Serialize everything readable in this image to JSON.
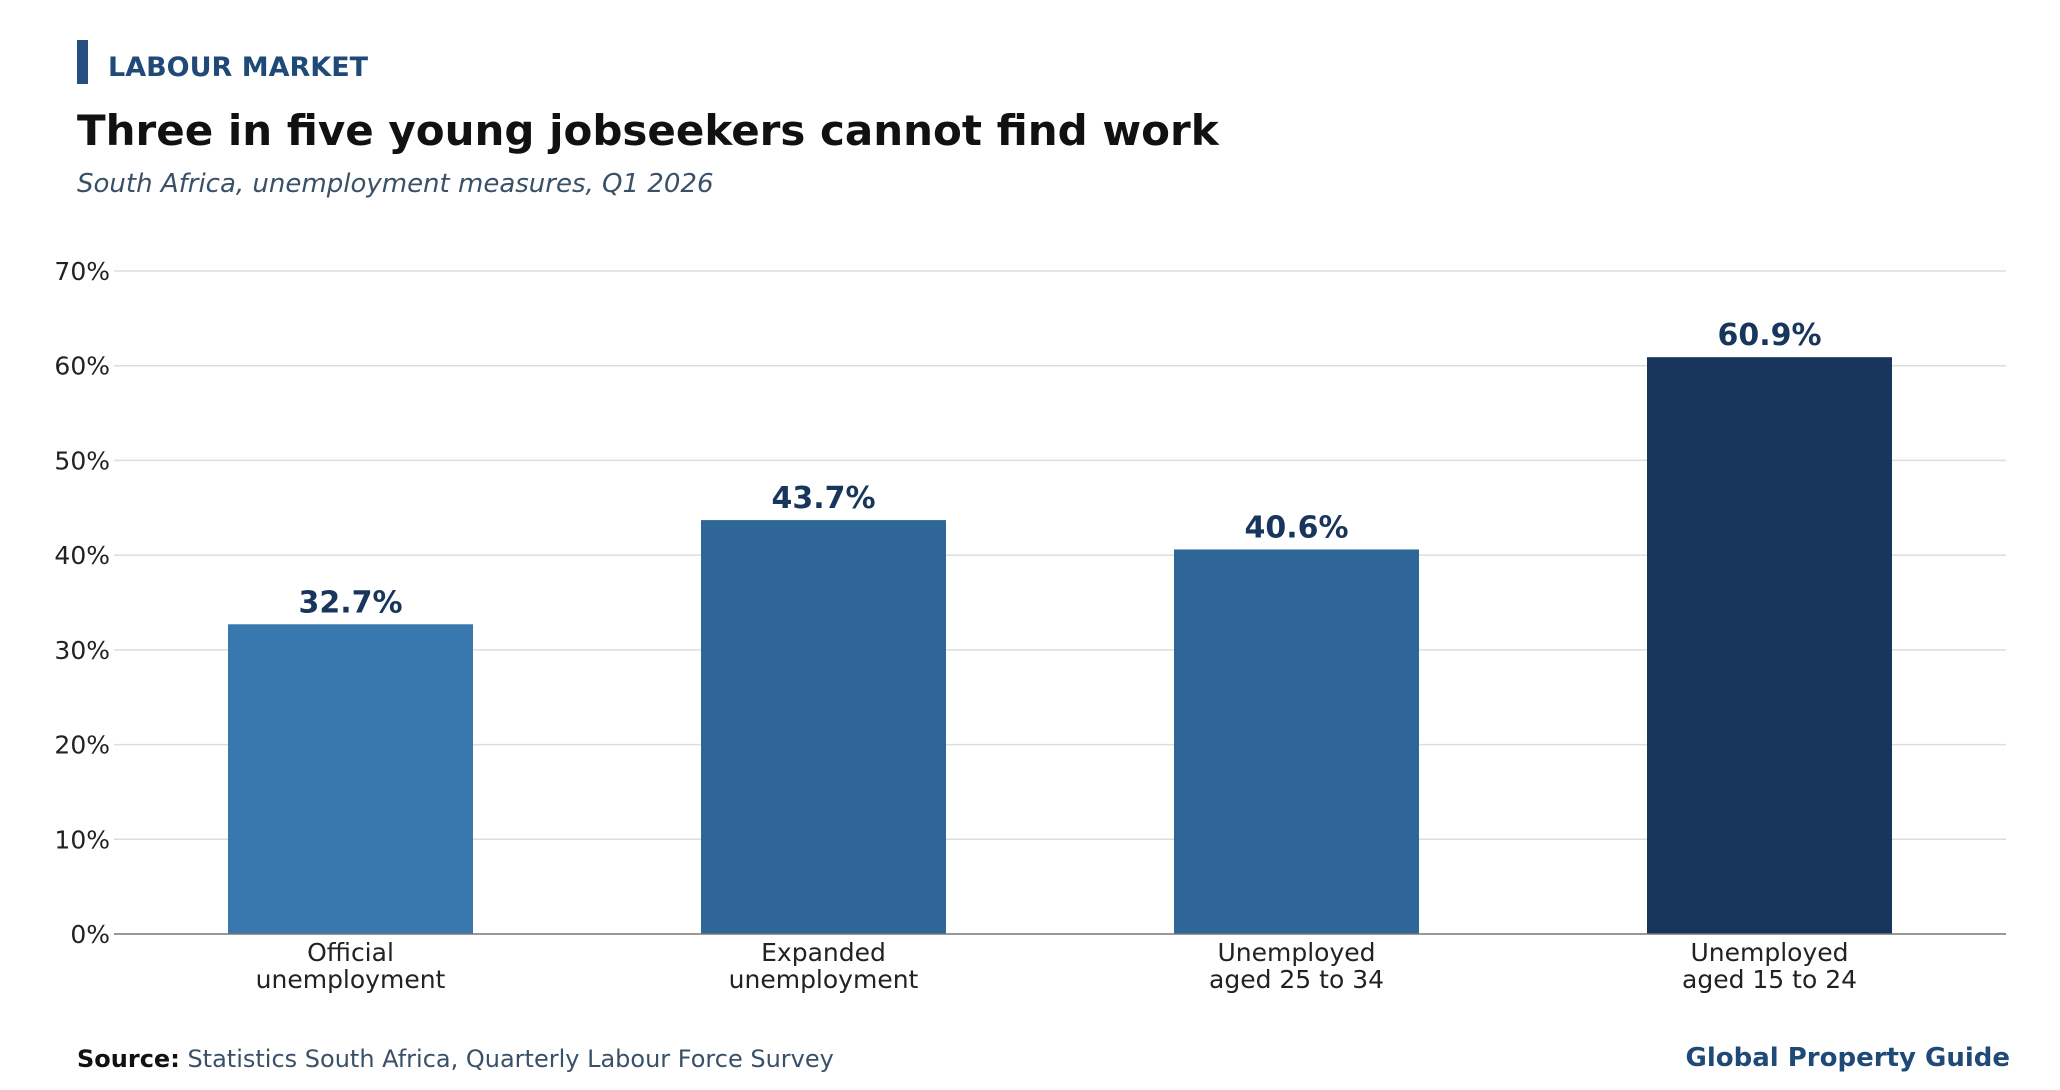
{
  "header": {
    "kicker": "LABOUR MARKET",
    "title": "Three in five young jobseekers cannot find work",
    "subtitle": "South Africa, unemployment measures, Q1 2026"
  },
  "footer": {
    "source_label": "Source:",
    "source_text": "Statistics South Africa, Quarterly Labour Force Survey",
    "brand": "Global Property Guide"
  },
  "chart_data": {
    "type": "bar",
    "title": "Three in five young jobseekers cannot find work",
    "subtitle": "South Africa, unemployment measures, Q1 2026",
    "xlabel": "",
    "ylabel": "",
    "categories": [
      [
        "Official",
        "unemployment"
      ],
      [
        "Expanded",
        "unemployment"
      ],
      [
        "Unemployed",
        "aged 25 to 34"
      ],
      [
        "Unemployed",
        "aged 15 to 24"
      ]
    ],
    "values": [
      32.7,
      43.7,
      40.6,
      60.9
    ],
    "value_labels": [
      "32.7%",
      "43.7%",
      "40.6%",
      "60.9%"
    ],
    "bar_colors": [
      "#3878ae",
      "#2d6697",
      "#2d6697",
      "#18365c"
    ],
    "ylim": [
      0,
      70
    ],
    "yticks": [
      0,
      10,
      20,
      30,
      40,
      50,
      60,
      70
    ],
    "ytick_labels": [
      "0%",
      "10%",
      "20%",
      "30%",
      "40%",
      "50%",
      "60%",
      "70%"
    ],
    "grid": true,
    "legend": "none",
    "colors": {
      "grid": "#dddddd",
      "axis": "#777777",
      "tick_text": "#222222",
      "value_label": "#18365c"
    }
  }
}
